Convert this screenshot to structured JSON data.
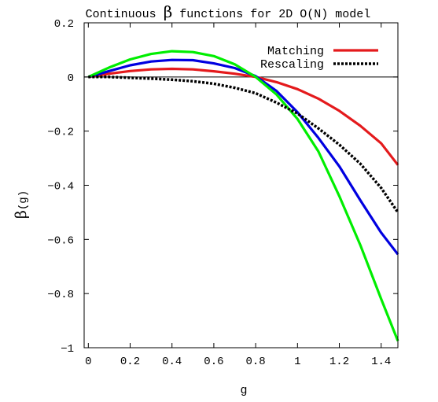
{
  "chart_data": {
    "type": "line",
    "title": {
      "prefix": "Continuous ",
      "symbol": "β",
      "suffix": " functions for 2D O(N) model"
    },
    "xlabel": "g",
    "ylabel": {
      "symbol": "β",
      "suffix": "(g)"
    },
    "xlim": [
      -0.02,
      1.48
    ],
    "ylim": [
      -1.0,
      0.2
    ],
    "x_ticks": [
      {
        "value": 0,
        "label": "0"
      },
      {
        "value": 0.2,
        "label": "0.2"
      },
      {
        "value": 0.4,
        "label": "0.4"
      },
      {
        "value": 0.6,
        "label": "0.6"
      },
      {
        "value": 0.8,
        "label": "0.8"
      },
      {
        "value": 1.0,
        "label": "1"
      },
      {
        "value": 1.2,
        "label": "1.2"
      },
      {
        "value": 1.4,
        "label": "1.4"
      }
    ],
    "y_ticks": [
      {
        "value": 0.2,
        "label": "0.2"
      },
      {
        "value": 0,
        "label": "0"
      },
      {
        "value": -0.2,
        "label": "−0.2"
      },
      {
        "value": -0.4,
        "label": "−0.4"
      },
      {
        "value": -0.6,
        "label": "−0.6"
      },
      {
        "value": -0.8,
        "label": "−0.8"
      },
      {
        "value": -1.0,
        "label": "−1"
      }
    ],
    "zero_line": true,
    "grid": false,
    "legend_position": "top-right",
    "series": [
      {
        "name": "Matching",
        "color": "#e41a1c",
        "style": "solid",
        "x": [
          0,
          0.1,
          0.2,
          0.3,
          0.4,
          0.5,
          0.6,
          0.7,
          0.8,
          0.9,
          1.0,
          1.1,
          1.2,
          1.3,
          1.4,
          1.48
        ],
        "y": [
          0,
          0.012,
          0.022,
          0.028,
          0.03,
          0.028,
          0.021,
          0.012,
          0.0,
          -0.019,
          -0.045,
          -0.08,
          -0.125,
          -0.18,
          -0.245,
          -0.325
        ]
      },
      {
        "name": "",
        "color": "#0000e0",
        "style": "solid",
        "x": [
          0,
          0.1,
          0.2,
          0.3,
          0.4,
          0.5,
          0.6,
          0.7,
          0.8,
          0.9,
          1.0,
          1.1,
          1.2,
          1.3,
          1.4,
          1.48
        ],
        "y": [
          0,
          0.022,
          0.043,
          0.057,
          0.063,
          0.062,
          0.05,
          0.033,
          0.003,
          -0.052,
          -0.13,
          -0.225,
          -0.33,
          -0.455,
          -0.575,
          -0.655
        ]
      },
      {
        "name": "",
        "color": "#00ee00",
        "style": "solid",
        "x": [
          0,
          0.1,
          0.2,
          0.3,
          0.4,
          0.5,
          0.6,
          0.7,
          0.8,
          0.9,
          1.0,
          1.1,
          1.2,
          1.3,
          1.4,
          1.48
        ],
        "y": [
          0,
          0.035,
          0.065,
          0.085,
          0.095,
          0.092,
          0.077,
          0.047,
          0.0,
          -0.065,
          -0.155,
          -0.275,
          -0.44,
          -0.62,
          -0.82,
          -0.975
        ]
      },
      {
        "name": "Rescaling",
        "color": "#000000",
        "style": "dotted",
        "x": [
          0,
          0.1,
          0.2,
          0.3,
          0.4,
          0.5,
          0.6,
          0.7,
          0.8,
          0.9,
          1.0,
          1.1,
          1.2,
          1.3,
          1.4,
          1.48
        ],
        "y": [
          0,
          0.0,
          -0.003,
          -0.006,
          -0.01,
          -0.016,
          -0.025,
          -0.04,
          -0.06,
          -0.095,
          -0.135,
          -0.19,
          -0.25,
          -0.32,
          -0.41,
          -0.5
        ]
      }
    ]
  }
}
